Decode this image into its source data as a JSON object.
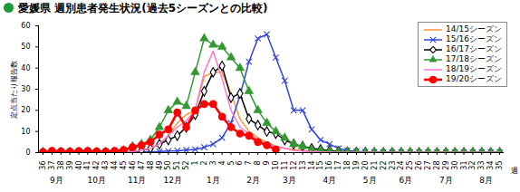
{
  "chart_data": {
    "type": "line",
    "title": "愛媛県 週別患者発生状況(過去5シーズンとの比較)",
    "x_label": "週",
    "y_label": "定点当たり報告数",
    "categories": [
      36,
      37,
      38,
      39,
      40,
      41,
      42,
      43,
      44,
      45,
      46,
      47,
      48,
      49,
      50,
      51,
      52,
      1,
      2,
      3,
      4,
      5,
      6,
      7,
      8,
      9,
      10,
      11,
      12,
      13,
      14,
      15,
      16,
      17,
      18,
      19,
      20,
      21,
      22,
      23,
      24,
      25,
      26,
      27,
      28,
      29,
      30,
      31,
      32,
      33,
      34,
      35
    ],
    "month_groups": [
      {
        "label": "9月",
        "from": 36,
        "to": 39
      },
      {
        "label": "10月",
        "from": 40,
        "to": 44
      },
      {
        "label": "11月",
        "from": 45,
        "to": 48
      },
      {
        "label": "12月",
        "from": 49,
        "to": 52
      },
      {
        "label": "1月",
        "from": 1,
        "to": 5
      },
      {
        "label": "2月",
        "from": 6,
        "to": 9
      },
      {
        "label": "3月",
        "from": 10,
        "to": 13
      },
      {
        "label": "4月",
        "from": 14,
        "to": 18
      },
      {
        "label": "5月",
        "from": 19,
        "to": 22
      },
      {
        "label": "6月",
        "from": 23,
        "to": 26
      },
      {
        "label": "7月",
        "from": 27,
        "to": 31
      },
      {
        "label": "8月",
        "from": 32,
        "to": 35
      }
    ],
    "ylim": [
      0,
      60
    ],
    "yticks": [
      0,
      10,
      20,
      30,
      40,
      50,
      60
    ],
    "grid": false,
    "legend": "top-right",
    "series": [
      {
        "name": "14/15シーズン",
        "color": "#ff9933",
        "marker": "none",
        "line_style": "solid",
        "values": [
          0.1,
          0.1,
          0.1,
          0.1,
          0.1,
          0.1,
          0.2,
          0.2,
          0.3,
          0.4,
          0.6,
          1.0,
          2,
          4,
          8,
          14,
          18,
          20,
          36,
          38,
          38,
          28,
          16,
          10,
          7,
          5,
          3,
          2,
          1.5,
          1,
          0.8,
          0.5,
          0.3,
          0.2,
          0.1,
          0.1,
          0.1,
          0.1,
          0.1,
          0.1,
          0.1,
          0.1,
          0.1,
          0.1,
          0.1,
          0.1,
          0.1,
          0.1,
          0.1,
          0.1,
          0.1,
          0.1
        ]
      },
      {
        "name": "15/16シーズン",
        "color": "#3344dd",
        "marker": "x",
        "line_style": "solid",
        "values": [
          0.1,
          0.1,
          0.1,
          0.1,
          0.1,
          0.1,
          0.1,
          0.1,
          0.1,
          0.2,
          0.2,
          0.3,
          0.4,
          0.5,
          0.7,
          0.9,
          1.2,
          1.5,
          2.5,
          4,
          7,
          14,
          27,
          43,
          54,
          56,
          45,
          34,
          20,
          20,
          11,
          6,
          4,
          2,
          1,
          0.5,
          0.3,
          0.2,
          0.1,
          0.1,
          0.1,
          0.1,
          0.1,
          0.1,
          0.1,
          0.1,
          0.1,
          0.1,
          0.1,
          0.1,
          0.1,
          0.1
        ]
      },
      {
        "name": "16/17シーズン",
        "color": "#000000",
        "marker": "diamond",
        "line_style": "solid",
        "values": [
          0.1,
          0.1,
          0.1,
          0.1,
          0.1,
          0.1,
          0.1,
          0.1,
          0.1,
          0.1,
          0.3,
          1,
          2,
          4,
          6,
          8,
          12,
          18,
          29,
          38,
          41,
          26,
          28,
          16,
          13,
          10,
          9,
          6,
          4,
          3,
          2,
          1.5,
          1,
          0.6,
          0.4,
          0.3,
          0.2,
          0.1,
          0.1,
          0.1,
          0.1,
          0.1,
          0.1,
          0.1,
          0.1,
          0.1,
          0.1,
          0.1,
          0.1,
          0.1,
          0.1,
          0.1
        ]
      },
      {
        "name": "17/18シーズン",
        "color": "#339933",
        "marker": "triangle",
        "line_style": "solid",
        "values": [
          0.1,
          0.1,
          0.1,
          0.1,
          0.1,
          0.1,
          0.1,
          0.1,
          0.1,
          1,
          3,
          4,
          6,
          12,
          20,
          24,
          22,
          38,
          54,
          51,
          50,
          45,
          40,
          29,
          20,
          14,
          10,
          7,
          4,
          3,
          1.5,
          1,
          0.6,
          0.4,
          0.3,
          0.2,
          0.1,
          0.1,
          0.1,
          0.1,
          0.1,
          0.1,
          0.1,
          0.1,
          0.1,
          0.1,
          0.1,
          0.1,
          0.1,
          0.1,
          0.1,
          0.1
        ]
      },
      {
        "name": "18/19シーズン",
        "color": "#ff77cc",
        "marker": "none",
        "line_style": "solid",
        "values": [
          0.1,
          0.1,
          0.1,
          0.1,
          0.1,
          0.1,
          0.1,
          0.1,
          0.1,
          0.1,
          0.5,
          1,
          2,
          4,
          8,
          12,
          15,
          20,
          38,
          48,
          35,
          20,
          12,
          9,
          6,
          4,
          3,
          2,
          1,
          0.8,
          0.5,
          0.3,
          0.2,
          0.1,
          0.1,
          0.1,
          0.1,
          0.1,
          0.1,
          0.1,
          0.1,
          0.1,
          0.1,
          0.1,
          0.1,
          0.1,
          0.1,
          0.1,
          0.1,
          0.1,
          0.1,
          0.1
        ]
      },
      {
        "name": "19/20シーズン",
        "color": "#ff0000",
        "marker": "circle",
        "line_style": "solid",
        "values": [
          0.3,
          0.8,
          0.6,
          0.5,
          0.7,
          0.8,
          0.6,
          0.5,
          0.8,
          1.2,
          2.5,
          3.5,
          5,
          8.5,
          11,
          19,
          12,
          20,
          23,
          23,
          17,
          12,
          9,
          8,
          5,
          3.5,
          1.5,
          null,
          null,
          null,
          null,
          null,
          null,
          null,
          null,
          null,
          null,
          null,
          null,
          null,
          null,
          null,
          null,
          null,
          null,
          null,
          null,
          null,
          null,
          null,
          null,
          null
        ]
      }
    ]
  }
}
